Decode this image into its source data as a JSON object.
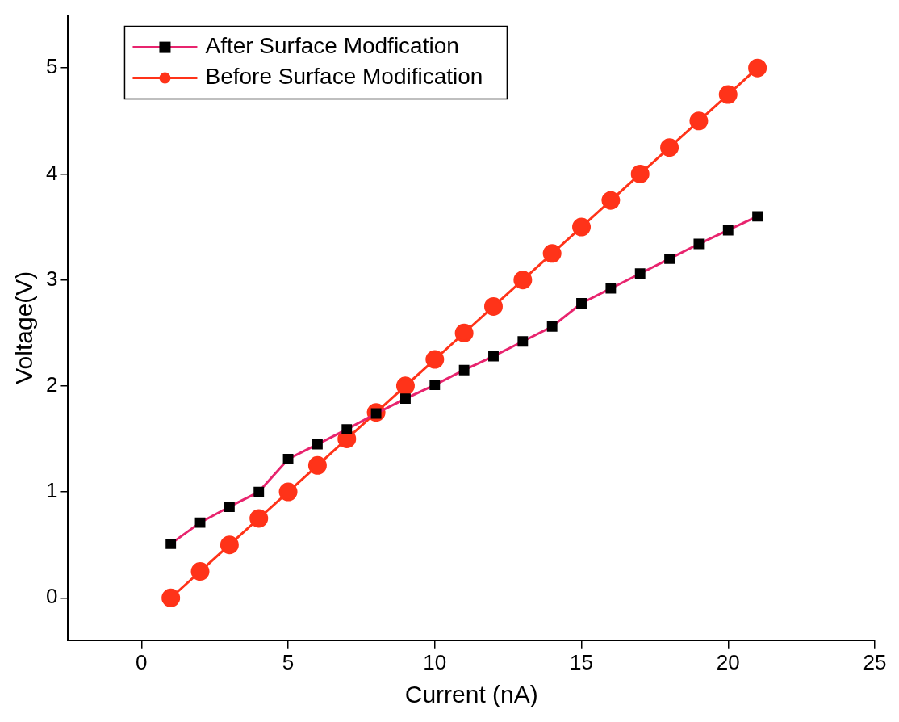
{
  "chart_data": {
    "type": "line",
    "xlabel": "Current (nA)",
    "ylabel": "Voltage(V)",
    "x": [
      1,
      2,
      3,
      4,
      5,
      6,
      7,
      8,
      9,
      10,
      11,
      12,
      13,
      14,
      15,
      16,
      17,
      18,
      19,
      20,
      21
    ],
    "series": [
      {
        "name": "After Surface Modfication",
        "color": "#e8246e",
        "colors": [
          "#000000",
          "#000000",
          "#000000",
          "#000000",
          "#000000",
          "#000000",
          "#000000",
          "#000000",
          "#000000",
          "#000000",
          "#000000",
          "#000000",
          "#000000",
          "#000000",
          "#000000",
          "#000000",
          "#000000",
          "#000000",
          "#000000",
          "#000000",
          "#000000"
        ],
        "marker": "square",
        "values": [
          0.51,
          0.71,
          0.86,
          1.0,
          1.31,
          1.45,
          1.59,
          1.74,
          1.88,
          2.01,
          2.15,
          2.28,
          2.42,
          2.56,
          2.78,
          2.92,
          3.06,
          3.2,
          3.34,
          3.47,
          3.6
        ]
      },
      {
        "name": "Before Surface Modification",
        "color": "#ff3319",
        "marker": "circle",
        "values": [
          0,
          0.25,
          0.5,
          0.75,
          1.0,
          1.25,
          1.5,
          1.75,
          2.0,
          2.25,
          2.5,
          2.75,
          3.0,
          3.25,
          3.5,
          3.75,
          4.0,
          4.25,
          4.5,
          4.75,
          5.0
        ]
      }
    ],
    "xlim": [
      -2.5,
      25
    ],
    "xticks": [
      0,
      5,
      10,
      15,
      20,
      25
    ],
    "ylim": [
      -0.4,
      5.5
    ],
    "yticks": [
      0,
      1,
      2,
      3,
      4,
      5
    ],
    "grid": false,
    "legend": "top left",
    "line_style": "solid"
  }
}
